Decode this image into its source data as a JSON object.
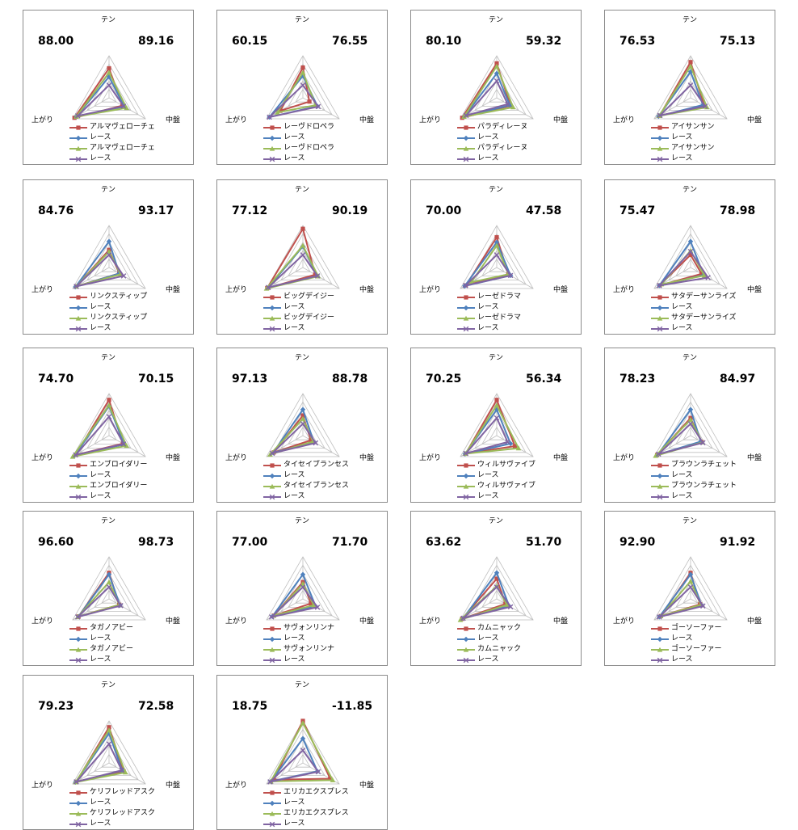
{
  "axes": [
    "テン",
    "中盤",
    "上がり"
  ],
  "series_colors": [
    "#c0504d",
    "#4f81bd",
    "#9bbb59",
    "#8064a2"
  ],
  "markers": [
    "square",
    "diamond",
    "triangle",
    "x"
  ],
  "chart_data": [
    {
      "type": "radar",
      "left_value": "88.00",
      "right_value": "89.16",
      "legend": [
        "アルマヴェローチェ",
        "レース",
        "アルマヴェローチェ",
        "レース"
      ],
      "series": [
        {
          "name": "アルマヴェローチェ",
          "values": [
            0.7,
            0.37,
            0.95
          ]
        },
        {
          "name": "レース",
          "values": [
            0.5,
            0.42,
            0.9
          ]
        },
        {
          "name": "アルマヴェローチェ",
          "values": [
            0.6,
            0.48,
            0.9
          ]
        },
        {
          "name": "レース",
          "values": [
            0.3,
            0.4,
            0.86
          ]
        }
      ]
    },
    {
      "type": "radar",
      "left_value": "60.15",
      "right_value": "76.55",
      "legend": [
        "レーヴドロペラ",
        "レース",
        "レーヴドロペラ",
        "レース"
      ],
      "series": [
        {
          "name": "レーヴドロペラ",
          "values": [
            0.72,
            0.18,
            0.62
          ]
        },
        {
          "name": "レース",
          "values": [
            0.52,
            0.4,
            0.92
          ]
        },
        {
          "name": "レーヴドロペラ",
          "values": [
            0.6,
            0.35,
            0.7
          ]
        },
        {
          "name": "レース",
          "values": [
            0.3,
            0.42,
            0.92
          ]
        }
      ]
    },
    {
      "type": "radar",
      "left_value": "80.10",
      "right_value": "59.32",
      "legend": [
        "パラディレーヌ",
        "レース",
        "パラディレーヌ",
        "レース"
      ],
      "series": [
        {
          "name": "パラディレーヌ",
          "values": [
            0.82,
            0.38,
            0.95
          ]
        },
        {
          "name": "レース",
          "values": [
            0.58,
            0.36,
            0.88
          ]
        },
        {
          "name": "パラディレーヌ",
          "values": [
            0.75,
            0.45,
            0.9
          ]
        },
        {
          "name": "レース",
          "values": [
            0.4,
            0.3,
            0.84
          ]
        }
      ]
    },
    {
      "type": "radar",
      "left_value": "76.53",
      "right_value": "75.13",
      "legend": [
        "アイサンサン",
        "レース",
        "アイサンサン",
        "レース"
      ],
      "series": [
        {
          "name": "アイサンサン",
          "values": [
            0.85,
            0.38,
            0.85
          ]
        },
        {
          "name": "レース",
          "values": [
            0.62,
            0.34,
            0.88
          ]
        },
        {
          "name": "アイサンサン",
          "values": [
            0.75,
            0.45,
            0.86
          ]
        },
        {
          "name": "レース",
          "values": [
            0.3,
            0.4,
            0.84
          ]
        }
      ]
    },
    {
      "type": "radar",
      "left_value": "84.76",
      "right_value": "93.17",
      "legend": [
        "リンクスティップ",
        "レース",
        "リンクスティップ",
        "レース"
      ],
      "series": [
        {
          "name": "リンクスティップ",
          "values": [
            0.42,
            0.28,
            0.9
          ]
        },
        {
          "name": "レース",
          "values": [
            0.62,
            0.28,
            0.92
          ]
        },
        {
          "name": "リンクスティップ",
          "values": [
            0.38,
            0.32,
            0.9
          ]
        },
        {
          "name": "レース",
          "values": [
            0.3,
            0.4,
            0.9
          ]
        }
      ]
    },
    {
      "type": "radar",
      "left_value": "77.12",
      "right_value": "90.19",
      "legend": [
        "ビッグデイジー",
        "レース",
        "ビッグデイジー",
        "レース"
      ],
      "series": [
        {
          "name": "ビッグデイジー",
          "values": [
            0.92,
            0.34,
            0.98
          ]
        },
        {
          "name": "レース",
          "values": [
            0.5,
            0.4,
            0.95
          ]
        },
        {
          "name": "ビッグデイジー",
          "values": [
            0.52,
            0.42,
            1.0
          ]
        },
        {
          "name": "レース",
          "values": [
            0.3,
            0.4,
            0.95
          ]
        }
      ]
    },
    {
      "type": "radar",
      "left_value": "70.00",
      "right_value": "47.58",
      "legend": [
        "レーゼドラマ",
        "レース",
        "レーゼドラマ",
        "レース"
      ],
      "series": [
        {
          "name": "レーゼドラマ",
          "values": [
            0.72,
            0.32,
            0.85
          ]
        },
        {
          "name": "レース",
          "values": [
            0.6,
            0.38,
            0.88
          ]
        },
        {
          "name": "レーゼドラマ",
          "values": [
            0.52,
            0.32,
            0.7
          ]
        },
        {
          "name": "レース",
          "values": [
            0.3,
            0.38,
            0.86
          ]
        }
      ]
    },
    {
      "type": "radar",
      "left_value": "75.47",
      "right_value": "78.98",
      "legend": [
        "サタデーサンライズ",
        "レース",
        "サタデーサンライズ",
        "レース"
      ],
      "series": [
        {
          "name": "サタデーサンライズ",
          "values": [
            0.3,
            0.3,
            0.85
          ]
        },
        {
          "name": "レース",
          "values": [
            0.62,
            0.36,
            0.86
          ]
        },
        {
          "name": "サタデーサンライズ",
          "values": [
            0.4,
            0.38,
            0.8
          ]
        },
        {
          "name": "レース",
          "values": [
            0.38,
            0.48,
            0.86
          ]
        }
      ]
    },
    {
      "type": "radar",
      "left_value": "74.70",
      "right_value": "70.15",
      "legend": [
        "エンブロイダリー",
        "レース",
        "エンブロイダリー",
        "レース"
      ],
      "series": [
        {
          "name": "エンブロイダリー",
          "values": [
            0.85,
            0.38,
            0.92
          ]
        },
        {
          "name": "レース",
          "values": [
            0.7,
            0.42,
            0.94
          ]
        },
        {
          "name": "エンブロイダリー",
          "values": [
            0.72,
            0.48,
            1.0
          ]
        },
        {
          "name": "レース",
          "values": [
            0.45,
            0.4,
            0.92
          ]
        }
      ]
    },
    {
      "type": "radar",
      "left_value": "97.13",
      "right_value": "88.78",
      "legend": [
        "タイセイブランセス",
        "レース",
        "タイセイブランセス",
        "レース"
      ],
      "series": [
        {
          "name": "タイセイブランセス",
          "values": [
            0.48,
            0.22,
            0.8
          ]
        },
        {
          "name": "レース",
          "values": [
            0.62,
            0.3,
            0.82
          ]
        },
        {
          "name": "タイセイブランセス",
          "values": [
            0.4,
            0.28,
            0.9
          ]
        },
        {
          "name": "レース",
          "values": [
            0.28,
            0.35,
            0.84
          ]
        }
      ]
    },
    {
      "type": "radar",
      "left_value": "70.25",
      "right_value": "56.34",
      "legend": [
        "ウィルサヴァイブ",
        "レース",
        "ウィルサヴァイブ",
        "レース"
      ],
      "series": [
        {
          "name": "ウィルサヴァイブ",
          "values": [
            0.85,
            0.5,
            0.85
          ]
        },
        {
          "name": "レース",
          "values": [
            0.62,
            0.38,
            0.87
          ]
        },
        {
          "name": "ウィルサヴァイブ",
          "values": [
            0.72,
            0.6,
            0.86
          ]
        },
        {
          "name": "レース",
          "values": [
            0.42,
            0.3,
            0.85
          ]
        }
      ]
    },
    {
      "type": "radar",
      "left_value": "78.23",
      "right_value": "84.97",
      "legend": [
        "ブラウンラチェット",
        "レース",
        "ブラウンラチェット",
        "レース"
      ],
      "series": [
        {
          "name": "ブラウンラチェット",
          "values": [
            0.42,
            0.3,
            0.92
          ]
        },
        {
          "name": "レース",
          "values": [
            0.62,
            0.28,
            0.9
          ]
        },
        {
          "name": "ブラウンラチェット",
          "values": [
            0.38,
            0.32,
            0.96
          ]
        },
        {
          "name": "レース",
          "values": [
            0.28,
            0.34,
            0.88
          ]
        }
      ]
    },
    {
      "type": "radar",
      "left_value": "96.60",
      "right_value": "98.73",
      "legend": [
        "タガノアビー",
        "レース",
        "タガノアビー",
        "レース"
      ],
      "series": [
        {
          "name": "タガノアビー",
          "values": [
            0.62,
            0.28,
            0.84
          ]
        },
        {
          "name": "レース",
          "values": [
            0.58,
            0.3,
            0.84
          ]
        },
        {
          "name": "タガノアビー",
          "values": [
            0.4,
            0.28,
            0.86
          ]
        },
        {
          "name": "レース",
          "values": [
            0.28,
            0.32,
            0.86
          ]
        }
      ]
    },
    {
      "type": "radar",
      "left_value": "77.00",
      "right_value": "71.70",
      "legend": [
        "サヴォンリンナ",
        "レース",
        "サヴォンリンナ",
        "レース"
      ],
      "series": [
        {
          "name": "サヴォンリンナ",
          "values": [
            0.4,
            0.22,
            0.8
          ]
        },
        {
          "name": "レース",
          "values": [
            0.58,
            0.35,
            0.84
          ]
        },
        {
          "name": "サヴォンリンナ",
          "values": [
            0.36,
            0.3,
            0.8
          ]
        },
        {
          "name": "レース",
          "values": [
            0.28,
            0.4,
            0.86
          ]
        }
      ]
    },
    {
      "type": "radar",
      "left_value": "63.62",
      "right_value": "51.70",
      "legend": [
        "カムニャック",
        "レース",
        "カムニャック",
        "レース"
      ],
      "series": [
        {
          "name": "カムニャック",
          "values": [
            0.48,
            0.24,
            0.95
          ]
        },
        {
          "name": "レース",
          "values": [
            0.62,
            0.34,
            0.92
          ]
        },
        {
          "name": "カムニャック",
          "values": [
            0.3,
            0.28,
            1.0
          ]
        },
        {
          "name": "レース",
          "values": [
            0.28,
            0.38,
            0.92
          ]
        }
      ]
    },
    {
      "type": "radar",
      "left_value": "92.90",
      "right_value": "91.92",
      "legend": [
        "ゴーソーファー",
        "レース",
        "ゴーソーファー",
        "レース"
      ],
      "series": [
        {
          "name": "ゴーソーファー",
          "values": [
            0.62,
            0.26,
            0.82
          ]
        },
        {
          "name": "レース",
          "values": [
            0.58,
            0.3,
            0.86
          ]
        },
        {
          "name": "ゴーソーファー",
          "values": [
            0.42,
            0.28,
            0.82
          ]
        },
        {
          "name": "レース",
          "values": [
            0.28,
            0.34,
            0.86
          ]
        }
      ]
    },
    {
      "type": "radar",
      "left_value": "79.23",
      "right_value": "72.58",
      "legend": [
        "ケリフレッドアスク",
        "レース",
        "ケリフレッドアスク",
        "レース"
      ],
      "series": [
        {
          "name": "ケリフレッドアスク",
          "values": [
            0.85,
            0.4,
            0.9
          ]
        },
        {
          "name": "レース",
          "values": [
            0.7,
            0.36,
            0.92
          ]
        },
        {
          "name": "ケリフレッドアスク",
          "values": [
            0.78,
            0.45,
            0.92
          ]
        },
        {
          "name": "レース",
          "values": [
            0.45,
            0.35,
            0.9
          ]
        }
      ]
    },
    {
      "type": "radar",
      "left_value": "18.75",
      "right_value": "-11.85",
      "legend": [
        "エリカエクスプレス",
        "レース",
        "エリカエクスプレス",
        "レース"
      ],
      "series": [
        {
          "name": "エリカエクスプレス",
          "values": [
            1.0,
            0.75,
            0.8
          ]
        },
        {
          "name": "レース",
          "values": [
            0.58,
            0.4,
            0.88
          ]
        },
        {
          "name": "エリカエクスプレス",
          "values": [
            0.95,
            0.82,
            0.88
          ]
        },
        {
          "name": "レース",
          "values": [
            0.3,
            0.42,
            0.9
          ]
        }
      ]
    }
  ]
}
